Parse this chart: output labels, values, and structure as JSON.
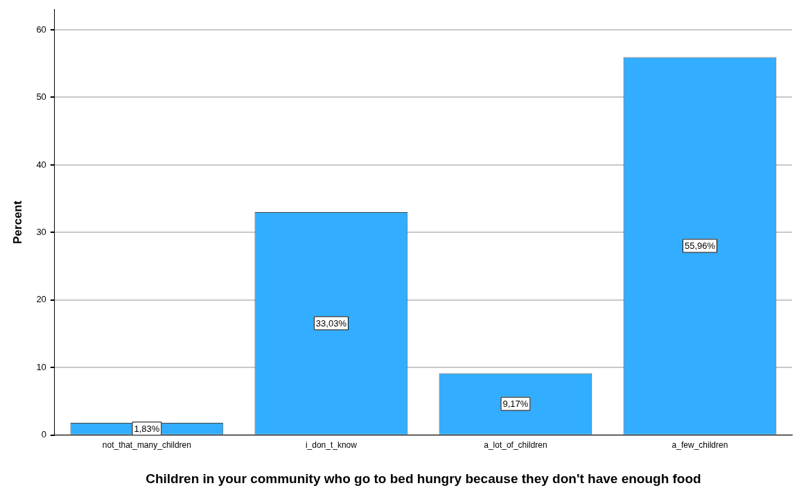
{
  "chart_data": {
    "type": "bar",
    "xlabel": "Children in your community who go to bed hungry because they don't have enough food",
    "ylabel": "Percent",
    "categories": [
      "not_that_many_children",
      "i_don_t_know",
      "a_lot_of_children",
      "a_few_children"
    ],
    "values": [
      1.83,
      33.03,
      9.17,
      55.96
    ],
    "value_labels": [
      "1,83%",
      "33,03%",
      "9,17%",
      "55,96%"
    ],
    "color": "#33adff",
    "ylim": [
      0,
      63
    ],
    "yticks": [
      0,
      10,
      20,
      30,
      40,
      50,
      60
    ],
    "grid": "y",
    "legend": false
  }
}
